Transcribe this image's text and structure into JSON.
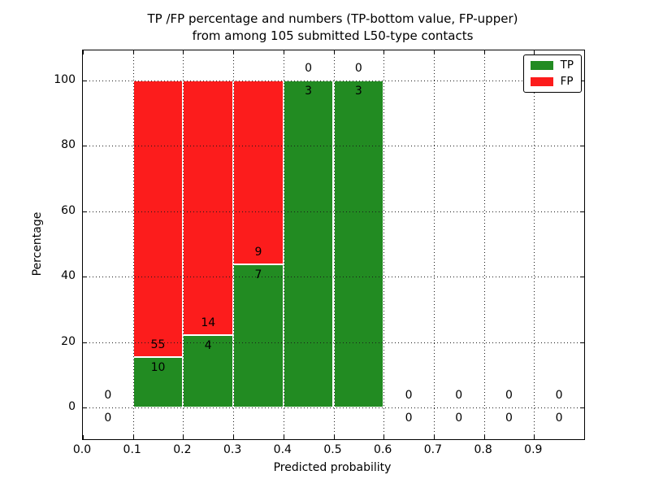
{
  "title_line1": "TP /FP percentage and numbers (TP-bottom value, FP-upper)",
  "title_line2": "from among 105 submitted L50-type contacts",
  "chart_data": {
    "type": "bar",
    "stacked": true,
    "title": "TP /FP percentage and numbers (TP-bottom value, FP-upper) from among 105 submitted L50-type contacts",
    "xlabel": "Predicted probability",
    "ylabel": "Percentage",
    "xlim": [
      0.0,
      1.0
    ],
    "ylim": [
      -9.7,
      109.2
    ],
    "grid": true,
    "x_ticks": [
      0.0,
      0.1,
      0.2,
      0.3,
      0.4,
      0.5,
      0.6,
      0.7,
      0.8,
      0.9
    ],
    "x_tick_labels": [
      "0.0",
      "0.1",
      "0.2",
      "0.3",
      "0.4",
      "0.5",
      "0.6",
      "0.7",
      "0.8",
      "0.9"
    ],
    "y_ticks": [
      0,
      20,
      40,
      60,
      80,
      100
    ],
    "y_tick_labels": [
      "0",
      "20",
      "40",
      "60",
      "80",
      "100"
    ],
    "total_contacts": 105,
    "colors": {
      "tp": "#228B22",
      "fp": "#FC1C1C"
    },
    "legend": {
      "position": "upper right",
      "entries": [
        {
          "label": "TP",
          "color": "#228B22"
        },
        {
          "label": "FP",
          "color": "#FC1C1C"
        }
      ]
    },
    "bins": [
      {
        "range": [
          0.0,
          0.1
        ],
        "tp": 0,
        "fp": 0,
        "tp_pct": 0,
        "fp_pct": 0
      },
      {
        "range": [
          0.1,
          0.2
        ],
        "tp": 10,
        "fp": 55,
        "tp_pct": 15.38,
        "fp_pct": 84.62
      },
      {
        "range": [
          0.2,
          0.3
        ],
        "tp": 4,
        "fp": 14,
        "tp_pct": 22.22,
        "fp_pct": 77.78
      },
      {
        "range": [
          0.3,
          0.4
        ],
        "tp": 7,
        "fp": 9,
        "tp_pct": 43.75,
        "fp_pct": 56.25
      },
      {
        "range": [
          0.4,
          0.5
        ],
        "tp": 3,
        "fp": 0,
        "tp_pct": 100,
        "fp_pct": 0
      },
      {
        "range": [
          0.5,
          0.6
        ],
        "tp": 3,
        "fp": 0,
        "tp_pct": 100,
        "fp_pct": 0
      },
      {
        "range": [
          0.6,
          0.7
        ],
        "tp": 0,
        "fp": 0,
        "tp_pct": 0,
        "fp_pct": 0
      },
      {
        "range": [
          0.7,
          0.8
        ],
        "tp": 0,
        "fp": 0,
        "tp_pct": 0,
        "fp_pct": 0
      },
      {
        "range": [
          0.8,
          0.9
        ],
        "tp": 0,
        "fp": 0,
        "tp_pct": 0,
        "fp_pct": 0
      },
      {
        "range": [
          0.9,
          1.0
        ],
        "tp": 0,
        "fp": 0,
        "tp_pct": 0,
        "fp_pct": 0
      }
    ]
  }
}
